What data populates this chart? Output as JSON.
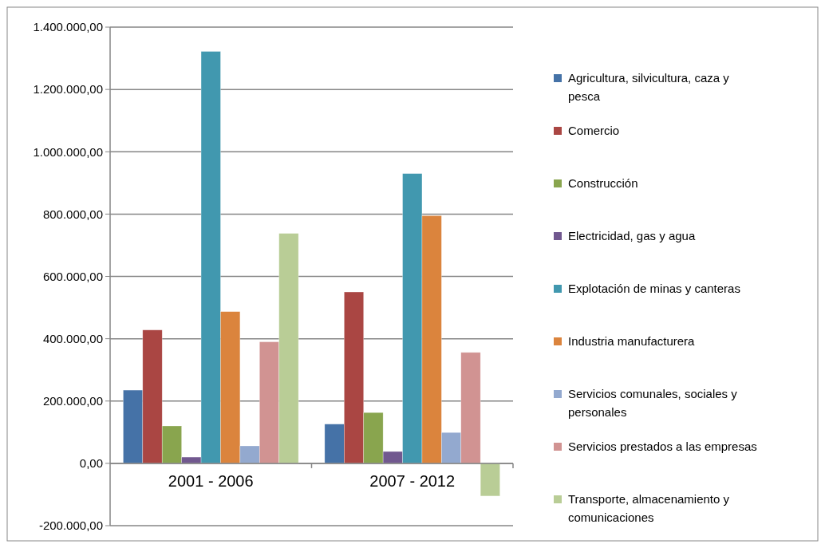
{
  "chart_data": {
    "type": "bar",
    "categories": [
      "2001 - 2006",
      "2007 - 2012"
    ],
    "series": [
      {
        "name": "Agricultura, silvicultura, caza y pesca",
        "color": "#4572a7",
        "values": [
          235000,
          126000
        ]
      },
      {
        "name": "Comercio",
        "color": "#aa4643",
        "values": [
          428000,
          550000
        ]
      },
      {
        "name": "Construcción",
        "color": "#89a54e",
        "values": [
          120000,
          163000
        ]
      },
      {
        "name": "Electricidad, gas y agua",
        "color": "#71588f",
        "values": [
          20000,
          38000
        ]
      },
      {
        "name": "Explotación de minas y canteras",
        "color": "#4198af",
        "values": [
          1322000,
          930000
        ]
      },
      {
        "name": "Industria manufacturera",
        "color": "#db843d",
        "values": [
          487000,
          795000
        ]
      },
      {
        "name": "Servicios comunales, sociales y personales",
        "color": "#93a9cf",
        "values": [
          56000,
          99000
        ]
      },
      {
        "name": "Servicios prestados a las empresas",
        "color": "#d19392",
        "values": [
          390000,
          356000
        ]
      },
      {
        "name": "Transporte, almacenamiento y comunicaciones",
        "color": "#b9cd96",
        "values": [
          738000,
          -105000
        ]
      }
    ],
    "ylim": [
      -200000,
      1400000
    ],
    "yticks": [
      {
        "value": -200000,
        "label": "-200.000,00"
      },
      {
        "value": 0,
        "label": "0,00"
      },
      {
        "value": 200000,
        "label": "200.000,00"
      },
      {
        "value": 400000,
        "label": "400.000,00"
      },
      {
        "value": 600000,
        "label": "600.000,00"
      },
      {
        "value": 800000,
        "label": "800.000,00"
      },
      {
        "value": 1000000,
        "label": "1.000.000,00"
      },
      {
        "value": 1200000,
        "label": "1.200.000,00"
      },
      {
        "value": 1400000,
        "label": "1.400.000,00"
      }
    ],
    "grid": "y",
    "legend": "right"
  }
}
